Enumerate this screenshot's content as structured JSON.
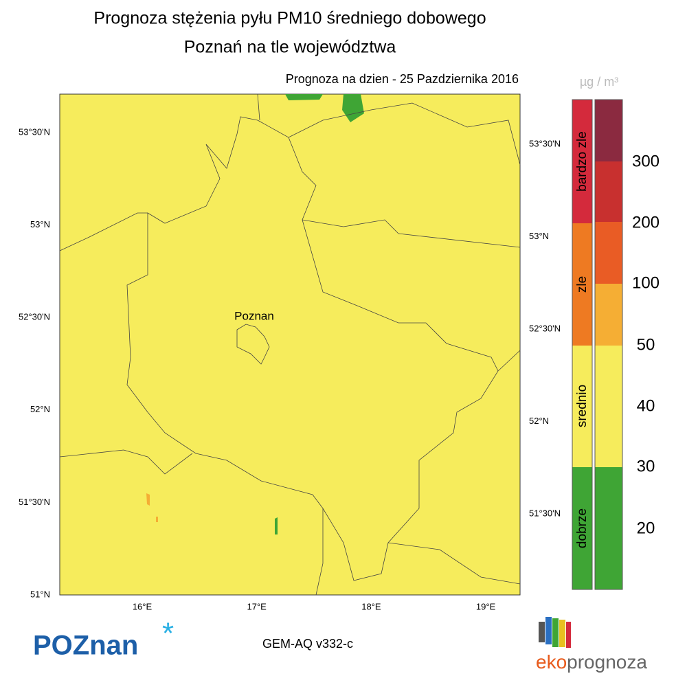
{
  "header": {
    "title": "Prognoza stężenia pyłu PM10 średniego dobowego",
    "subtitle": "Poznań na tle województwa",
    "date_line": "Prognoza na dzien -  25 Pazdziernika 2016"
  },
  "map": {
    "city_label": "Poznan",
    "lat_labels_left": [
      "53°30'N",
      "53°N",
      "52°30'N",
      "52°N",
      "51°30'N",
      "51°N"
    ],
    "lat_labels_right": [
      "53°30'N",
      "53°N",
      "52°30'N",
      "52°N",
      "51°30'N"
    ],
    "lon_labels": [
      "16°E",
      "17°E",
      "18°E",
      "19°E"
    ]
  },
  "legend": {
    "unit": "µg / m³",
    "categories": [
      "bardzo zle",
      "zle",
      "srednio",
      "dobrze"
    ],
    "levels": [
      "300",
      "200",
      "100",
      "50",
      "40",
      "30",
      "20"
    ]
  },
  "footer": {
    "logo_left": "POZnan",
    "logo_star": "*",
    "model": "GEM-AQ v332-c",
    "logo_right_a": "eko",
    "logo_right_b": "prognoza"
  }
}
